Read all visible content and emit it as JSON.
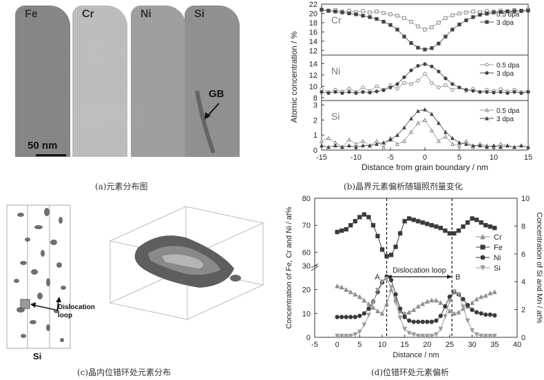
{
  "panels": {
    "a": {
      "caption": "(a)元素分布图",
      "tips": [
        {
          "label": "Fe",
          "color": "#8f8f8f"
        },
        {
          "label": "Cr",
          "color": "#c9c9c9"
        },
        {
          "label": "Ni",
          "color": "#a9a9a9"
        },
        {
          "label": "Si",
          "color": "#9a9a9a"
        }
      ],
      "gb_label": "GB",
      "scale_label": "50 nm"
    },
    "b": {
      "caption": "(b)晶界元素偏析随辐照剂量变化",
      "xlabel": "Distance from grain boundary / nm",
      "ylabel": "Atomic concentration / %"
    },
    "c": {
      "caption": "(c)晶内位错环处元素分布",
      "dislocation_label_1": "Dislocation",
      "dislocation_label_2": "loop",
      "si_label": "Si"
    },
    "d": {
      "caption": "(d)位错环处元素偏析",
      "xlabel": "Distance / nm",
      "ylabel_left": "Concentration of Fe, Cr and Ni / at%",
      "ylabel_right": "Concentration of Si and Mn / at%",
      "annotation": "Dislocation loop",
      "point_a": "A",
      "point_b": "B"
    }
  },
  "chart_data": [
    {
      "type": "line",
      "panel": "b",
      "xlabel": "Distance from grain boundary / nm",
      "ylabel": "Atomic concentration / %",
      "xlim": [
        -15,
        15
      ],
      "xticks": [
        -15,
        -10,
        -5,
        0,
        5,
        10,
        15
      ],
      "subplots": [
        {
          "element": "Cr",
          "ylim": [
            11,
            22
          ],
          "yticks": [
            12,
            14,
            16,
            18,
            20,
            22
          ],
          "series": [
            {
              "name": "0.5 dpa",
              "marker": "square-open",
              "x": [
                -15,
                -14,
                -13,
                -12,
                -11,
                -10,
                -9,
                -8,
                -7,
                -6,
                -5,
                -4,
                -3,
                -2,
                -1,
                0,
                1,
                2,
                3,
                4,
                5,
                6,
                7,
                8,
                9,
                10,
                11,
                12,
                13,
                14,
                15
              ],
              "y": [
                20.8,
                20.5,
                20.7,
                20.4,
                20.6,
                20.3,
                20.5,
                20.2,
                20.4,
                20.1,
                19.8,
                19.5,
                19,
                18.2,
                17.2,
                16.5,
                17.0,
                18.0,
                19.0,
                19.6,
                20.0,
                20.2,
                20.4,
                20.3,
                20.5,
                20.4,
                20.6,
                20.5,
                20.7,
                20.6,
                20.8
              ]
            },
            {
              "name": "3 dpa",
              "marker": "square-filled",
              "x": [
                -15,
                -14,
                -13,
                -12,
                -11,
                -10,
                -9,
                -8,
                -7,
                -6,
                -5,
                -4,
                -3,
                -2,
                -1,
                0,
                1,
                2,
                3,
                4,
                5,
                6,
                7,
                8,
                9,
                10,
                11,
                12,
                13,
                14,
                15
              ],
              "y": [
                20.8,
                20.6,
                20.4,
                20.2,
                20.0,
                19.8,
                19.5,
                19.2,
                18.8,
                18.2,
                17.5,
                16.5,
                15.0,
                13.6,
                12.6,
                12.2,
                12.5,
                13.5,
                15.0,
                16.5,
                17.6,
                18.5,
                19.2,
                19.7,
                20.0,
                20.2,
                20.3,
                20.4,
                20.5,
                20.5,
                20.6
              ]
            }
          ]
        },
        {
          "element": "Ni",
          "ylim": [
            7.5,
            15.5
          ],
          "yticks": [
            8,
            10,
            12,
            14
          ],
          "series": [
            {
              "name": "0.5 dpa",
              "marker": "circle-open",
              "x": [
                -15,
                -14,
                -13,
                -12,
                -11,
                -10,
                -9,
                -8,
                -7,
                -6,
                -5,
                -4,
                -3,
                -2,
                -1,
                0,
                1,
                2,
                3,
                4,
                5,
                6,
                7,
                8,
                9,
                10,
                11,
                12,
                13,
                14,
                15
              ],
              "y": [
                9.5,
                9.0,
                9.4,
                9.1,
                9.6,
                9.0,
                9.8,
                9.2,
                10.0,
                9.4,
                10.2,
                9.6,
                10.6,
                10.4,
                11.0,
                12.2,
                10.6,
                9.8,
                10.2,
                9.4,
                9.8,
                9.2,
                9.6,
                9.0,
                9.4,
                9.2,
                9.5,
                9.1,
                9.4,
                9.0,
                9.2
              ]
            },
            {
              "name": "3 dpa",
              "marker": "circle-filled",
              "x": [
                -15,
                -14,
                -13,
                -12,
                -11,
                -10,
                -9,
                -8,
                -7,
                -6,
                -5,
                -4,
                -3,
                -2,
                -1,
                0,
                1,
                2,
                3,
                4,
                5,
                6,
                7,
                8,
                9,
                10,
                11,
                12,
                13,
                14,
                15
              ],
              "y": [
                9.0,
                8.8,
                9.0,
                8.8,
                9.0,
                8.8,
                9.0,
                8.9,
                9.1,
                9.3,
                9.8,
                10.4,
                11.6,
                12.8,
                13.6,
                13.9,
                13.5,
                12.6,
                11.4,
                10.4,
                9.8,
                9.4,
                9.2,
                9.0,
                9.0,
                8.9,
                9.0,
                8.8,
                9.0,
                8.8,
                9.0
              ]
            }
          ]
        },
        {
          "element": "Si",
          "ylim": [
            0,
            3.3
          ],
          "yticks": [
            0,
            1,
            2,
            3
          ],
          "series": [
            {
              "name": "0.5 dpa",
              "marker": "triangle-open",
              "x": [
                -15,
                -14,
                -13,
                -12,
                -11,
                -10,
                -9,
                -8,
                -7,
                -6,
                -5,
                -4,
                -3,
                -2,
                -1,
                0,
                1,
                2,
                3,
                4,
                5,
                6,
                7,
                8,
                9,
                10,
                11,
                12,
                13,
                14,
                15
              ],
              "y": [
                0.6,
                0.8,
                0.5,
                0.2,
                0.7,
                0.4,
                0.6,
                0.3,
                0.6,
                0.2,
                0.8,
                0.4,
                0.6,
                1.2,
                1.8,
                2.0,
                1.3,
                0.6,
                0.9,
                0.4,
                0.3,
                0.6,
                0.2,
                0.4,
                0.3,
                0.2,
                0.4,
                0.3,
                0.2,
                0.3,
                0.2
              ]
            },
            {
              "name": "3 dpa",
              "marker": "triangle-filled",
              "x": [
                -15,
                -14,
                -13,
                -12,
                -11,
                -10,
                -9,
                -8,
                -7,
                -6,
                -5,
                -4,
                -3,
                -2,
                -1,
                0,
                1,
                2,
                3,
                4,
                5,
                6,
                7,
                8,
                9,
                10,
                11,
                12,
                13,
                14,
                15
              ],
              "y": [
                0.3,
                0.2,
                0.3,
                0.2,
                0.3,
                0.2,
                0.3,
                0.3,
                0.4,
                0.5,
                0.7,
                1.0,
                1.5,
                2.1,
                2.6,
                2.7,
                2.4,
                1.8,
                1.2,
                0.8,
                0.5,
                0.4,
                0.3,
                0.3,
                0.2,
                0.3,
                0.2,
                0.3,
                0.2,
                0.3,
                0.2
              ]
            }
          ]
        }
      ]
    },
    {
      "type": "line",
      "panel": "d",
      "xlabel": "Distance / nm",
      "ylabel": "Concentration of Fe, Cr and Ni / at%",
      "ylabel_right": "Concentration of Si and Mn / at%",
      "xlim": [
        -5,
        40
      ],
      "xticks": [
        -5,
        0,
        5,
        10,
        15,
        20,
        25,
        30,
        35,
        40
      ],
      "ylim_lower": [
        0,
        30
      ],
      "ylim_upper": [
        55,
        80
      ],
      "yticks_left": [
        0,
        10,
        20,
        30,
        60,
        70,
        80
      ],
      "ylim_right": [
        0,
        10
      ],
      "yticks_right": [
        0,
        2,
        4,
        6,
        8,
        10
      ],
      "vlines": [
        11,
        25.5
      ],
      "series": [
        {
          "name": "Cr",
          "marker": "triangle-up",
          "axis": "left",
          "x": [
            0,
            1,
            2,
            3,
            4,
            5,
            6,
            7,
            8,
            9,
            10,
            11,
            12,
            13,
            14,
            15,
            16,
            17,
            18,
            19,
            20,
            21,
            22,
            23,
            24,
            25,
            26,
            27,
            28,
            29,
            30,
            31,
            32,
            33,
            34,
            35
          ],
          "y": [
            21.5,
            21,
            20,
            19,
            18,
            17,
            15.5,
            14,
            12.5,
            11,
            10,
            14,
            20,
            16,
            11,
            10,
            10.5,
            11.5,
            13,
            14,
            15,
            15.5,
            15.5,
            14.5,
            13,
            11,
            10,
            10.5,
            12,
            13,
            14.5,
            16,
            17,
            17.5,
            18.5,
            19
          ]
        },
        {
          "name": "Fe",
          "marker": "square",
          "axis": "left",
          "x": [
            0,
            1,
            2,
            3,
            4,
            5,
            6,
            7,
            8,
            9,
            10,
            11,
            12,
            13,
            14,
            15,
            16,
            17,
            18,
            19,
            20,
            21,
            22,
            23,
            24,
            25,
            26,
            27,
            28,
            29,
            30,
            31,
            32,
            33,
            34,
            35
          ],
          "y": [
            67.5,
            68,
            68.5,
            70,
            71.5,
            73,
            74,
            73,
            70,
            66,
            61,
            58.5,
            59,
            62,
            67,
            71.5,
            72.5,
            72,
            71.5,
            71,
            70.5,
            70,
            69.5,
            69,
            68,
            67,
            67,
            68,
            69.5,
            71,
            72.5,
            72,
            71,
            70,
            69.5,
            69
          ]
        },
        {
          "name": "Ni",
          "marker": "circle",
          "axis": "left",
          "x": [
            0,
            1,
            2,
            3,
            4,
            5,
            6,
            7,
            8,
            9,
            10,
            11,
            12,
            13,
            14,
            15,
            16,
            17,
            18,
            19,
            20,
            21,
            22,
            23,
            24,
            25,
            26,
            27,
            28,
            29,
            30,
            31,
            32,
            33,
            34,
            35
          ],
          "y": [
            8.5,
            8.5,
            8.5,
            8.5,
            8.5,
            9,
            10,
            12,
            15,
            19,
            23,
            25.5,
            24,
            18,
            12,
            8.5,
            7,
            6.5,
            6.5,
            6.5,
            6.5,
            6.5,
            7,
            9,
            13,
            17,
            19,
            18,
            16,
            13.5,
            11.5,
            10.5,
            10,
            9.5,
            9.5,
            9.2
          ]
        },
        {
          "name": "Si",
          "marker": "triangle-down",
          "axis": "right",
          "x": [
            0,
            1,
            2,
            3,
            4,
            5,
            6,
            7,
            8,
            9,
            10,
            11,
            12,
            13,
            14,
            15,
            16,
            17,
            18,
            19,
            20,
            21,
            22,
            23,
            24,
            25,
            26,
            27,
            28,
            29,
            30,
            31,
            32,
            33,
            34,
            35
          ],
          "y": [
            0.1,
            0.1,
            0.1,
            0.1,
            0.2,
            0.4,
            0.9,
            1.6,
            2.5,
            3.4,
            4.0,
            4.2,
            3.6,
            2.5,
            1.4,
            0.6,
            0.3,
            0.2,
            0.1,
            0.1,
            0.1,
            0.1,
            0.2,
            0.6,
            1.5,
            2.6,
            3.3,
            3.1,
            2.2,
            1.2,
            0.5,
            0.2,
            0.1,
            0.1,
            0.1,
            0.1
          ]
        }
      ]
    }
  ]
}
